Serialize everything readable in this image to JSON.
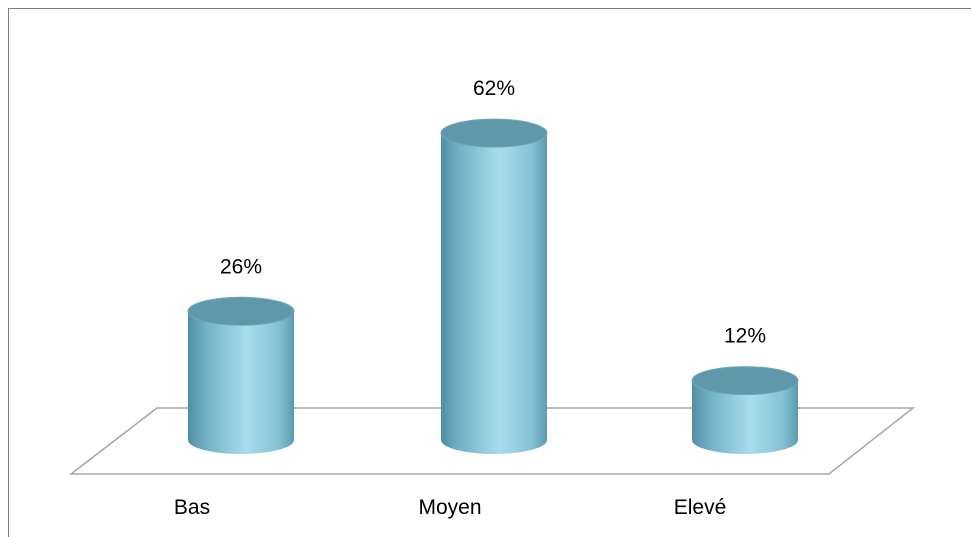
{
  "chart_data": {
    "type": "bar",
    "categories": [
      "Bas",
      "Moyen",
      "Elevé"
    ],
    "values": [
      26,
      62,
      12
    ],
    "data_labels": [
      "26%",
      "62%",
      "12%"
    ],
    "unit": "%",
    "title": "",
    "xlabel": "",
    "ylabel": "",
    "ylim": [
      0,
      70
    ],
    "grid": false,
    "legend": "none",
    "bar_style": "3d-cylinder",
    "colors": {
      "bar_light": "#a6dcec",
      "bar_mid": "#7fbfd4",
      "bar_dark": "#4e8ea3",
      "bar_top": "#5f98ab",
      "floor_stroke": "#a6a6a6"
    }
  }
}
